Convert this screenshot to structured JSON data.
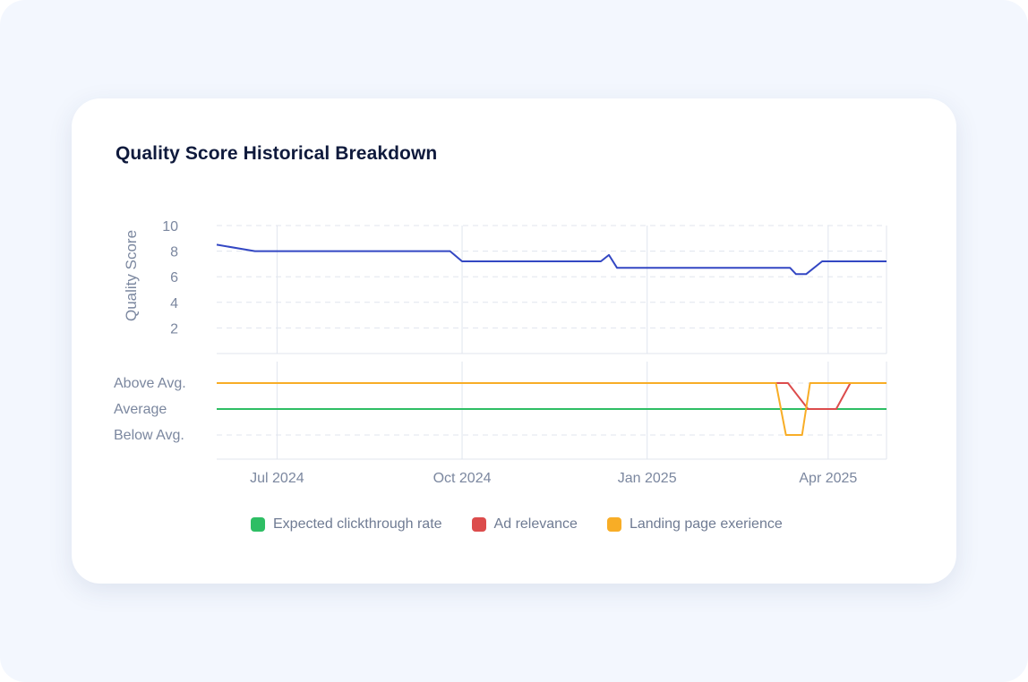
{
  "title": "Quality Score Historical Breakdown",
  "chart_data": [
    {
      "type": "line",
      "ylabel": "Quality Score",
      "ylim": [
        0,
        10
      ],
      "yticks": [
        2,
        4,
        6,
        8,
        10
      ],
      "grid": true,
      "series": [
        {
          "name": "Quality Score",
          "color": "#3347c3",
          "x": [
            "2024-06-01",
            "2024-06-20",
            "2024-09-25",
            "2024-10-01",
            "2024-12-09",
            "2024-12-13",
            "2024-12-17",
            "2025-03-13",
            "2025-03-16",
            "2025-03-21",
            "2025-03-29",
            "2025-04-30"
          ],
          "values": [
            8.5,
            8.0,
            8.0,
            7.2,
            7.2,
            7.7,
            6.7,
            6.7,
            6.2,
            6.2,
            7.2,
            7.2
          ]
        }
      ]
    },
    {
      "type": "line",
      "y_categories": [
        "Above Avg.",
        "Average",
        "Below Avg."
      ],
      "x_ticks": [
        "Jul 2024",
        "Oct 2024",
        "Jan 2025",
        "Apr 2025"
      ],
      "grid": true,
      "legend": "bottom",
      "series": [
        {
          "name": "Expected clickthrough rate",
          "color": "#2ebe64",
          "x": [
            "2024-06-01",
            "2025-04-30"
          ],
          "values": [
            "Average",
            "Average"
          ]
        },
        {
          "name": "Ad relevance",
          "color": "#dc4c4c",
          "x": [
            "2024-06-01",
            "2025-03-12",
            "2025-03-22",
            "2025-04-05",
            "2025-04-12",
            "2025-04-30"
          ],
          "values": [
            "Above Avg.",
            "Above Avg.",
            "Average",
            "Average",
            "Above Avg.",
            "Above Avg."
          ]
        },
        {
          "name": "Landing page exerience",
          "color": "#f8ad26",
          "x": [
            "2024-06-01",
            "2025-03-06",
            "2025-03-11",
            "2025-03-19",
            "2025-03-23",
            "2025-04-30"
          ],
          "values": [
            "Above Avg.",
            "Above Avg.",
            "Below Avg.",
            "Below Avg.",
            "Above Avg.",
            "Above Avg."
          ]
        }
      ]
    }
  ]
}
